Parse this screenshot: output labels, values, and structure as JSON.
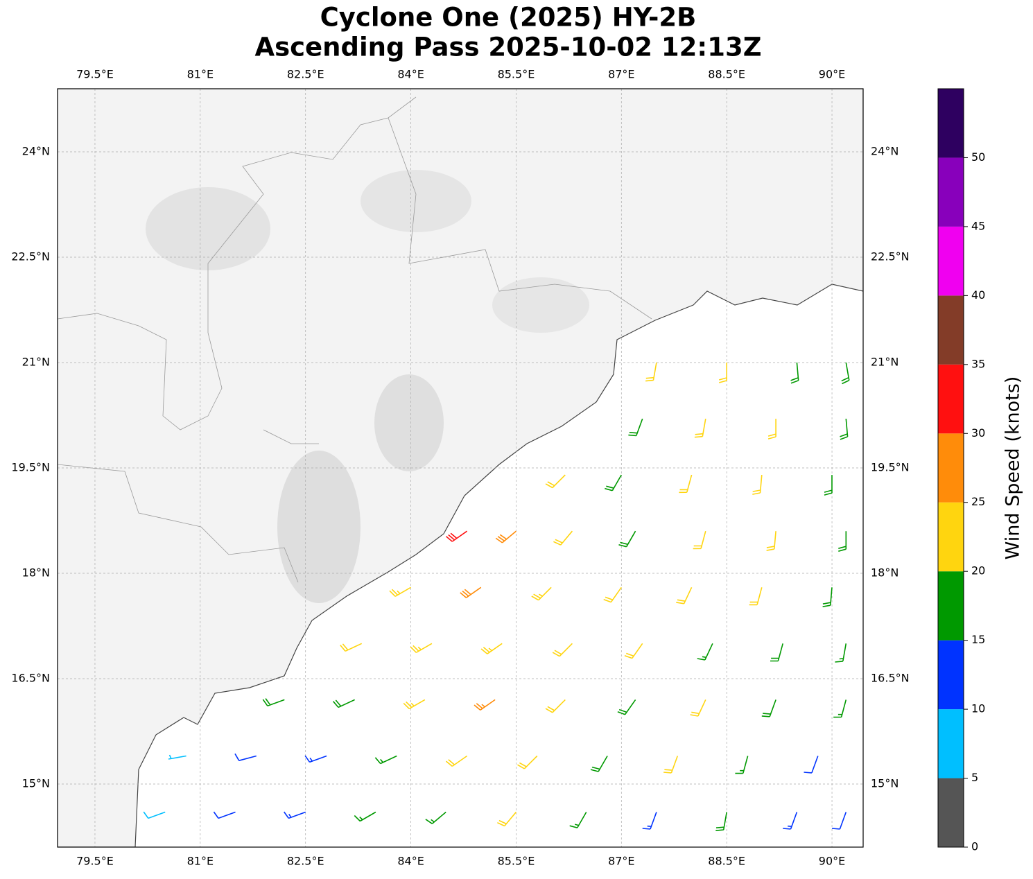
{
  "chart_data": {
    "type": "barbs",
    "title_lines": [
      "Cyclone One (2025) HY-2B",
      "Ascending Pass 2025-10-02 12:13Z"
    ],
    "xlim": [
      78.967,
      90.444
    ],
    "ylim": [
      14.102,
      24.898
    ],
    "xticks": [
      {
        "value": 79.5,
        "label": "79.5°E"
      },
      {
        "value": 81,
        "label": "81°E"
      },
      {
        "value": 82.5,
        "label": "82.5°E"
      },
      {
        "value": 84,
        "label": "84°E"
      },
      {
        "value": 85.5,
        "label": "85.5°E"
      },
      {
        "value": 87,
        "label": "87°E"
      },
      {
        "value": 88.5,
        "label": "88.5°E"
      },
      {
        "value": 90,
        "label": "90°E"
      }
    ],
    "yticks": [
      {
        "value": 15,
        "label": "15°N"
      },
      {
        "value": 16.5,
        "label": "16.5°N"
      },
      {
        "value": 18,
        "label": "18°N"
      },
      {
        "value": 19.5,
        "label": "19.5°N"
      },
      {
        "value": 21,
        "label": "21°N"
      },
      {
        "value": 22.5,
        "label": "22.5°N"
      },
      {
        "value": 24,
        "label": "24°N"
      }
    ],
    "grid": true,
    "colorbar": {
      "label": "Wind Speed (knots)",
      "bounds": [
        0,
        5,
        10,
        15,
        20,
        25,
        30,
        35,
        40,
        45,
        50,
        55
      ],
      "colors": [
        "#555555",
        "#00bfff",
        "#0033ff",
        "#009900",
        "#ffd50f",
        "#ff8c0a",
        "#ff1010",
        "#833c28",
        "#f000f0",
        "#8800bb",
        "#2e0060"
      ],
      "ticks": [
        0,
        5,
        10,
        15,
        20,
        25,
        30,
        35,
        40,
        45,
        50
      ]
    },
    "barbs": {
      "lon": [
        80.5,
        81.5,
        82.5,
        83.5,
        84.5,
        85.5,
        86.5,
        87.5,
        88.5,
        89.5,
        90.2,
        80.8,
        81.8,
        82.8,
        83.8,
        84.8,
        85.8,
        86.8,
        87.8,
        88.8,
        89.8,
        82.2,
        83.2,
        84.2,
        85.2,
        86.2,
        87.2,
        88.2,
        89.2,
        90.2,
        83.3,
        84.3,
        85.3,
        86.3,
        87.3,
        88.3,
        89.3,
        90.2,
        84.0,
        85.0,
        86.0,
        87.0,
        88.0,
        89.0,
        90.0,
        84.8,
        85.5,
        86.3,
        87.2,
        88.2,
        89.2,
        90.2,
        86.2,
        87.0,
        88.0,
        89.0,
        90.0,
        87.3,
        88.2,
        89.2,
        90.2,
        87.5,
        88.5,
        89.5,
        90.2
      ],
      "lat": [
        14.6,
        14.6,
        14.6,
        14.6,
        14.6,
        14.6,
        14.6,
        14.6,
        14.6,
        14.6,
        14.6,
        15.4,
        15.4,
        15.4,
        15.4,
        15.4,
        15.4,
        15.4,
        15.4,
        15.4,
        15.4,
        16.2,
        16.2,
        16.2,
        16.2,
        16.2,
        16.2,
        16.2,
        16.2,
        16.2,
        17.0,
        17.0,
        17.0,
        17.0,
        17.0,
        17.0,
        17.0,
        17.0,
        17.8,
        17.8,
        17.8,
        17.8,
        17.8,
        17.8,
        17.8,
        18.6,
        18.6,
        18.6,
        18.6,
        18.6,
        18.6,
        18.6,
        19.4,
        19.4,
        19.4,
        19.4,
        19.4,
        20.2,
        20.2,
        20.2,
        20.2,
        21.0,
        21.0,
        21.0,
        21.0
      ],
      "speed": [
        8,
        12,
        13,
        16,
        17,
        22,
        17,
        14,
        19,
        13,
        12,
        7,
        12,
        14,
        17,
        22,
        22,
        19,
        20,
        17,
        12,
        18,
        19,
        23,
        26,
        22,
        18,
        22,
        18,
        17,
        22,
        23,
        24,
        22,
        21,
        17,
        18,
        17,
        24,
        29,
        23,
        22,
        22,
        21,
        18,
        32,
        28,
        22,
        18,
        22,
        21,
        18,
        21,
        18,
        22,
        22,
        18,
        18,
        22,
        22,
        18,
        22,
        22,
        18,
        18
      ],
      "direction": [
        250,
        250,
        250,
        240,
        230,
        220,
        210,
        200,
        190,
        200,
        200,
        260,
        255,
        250,
        245,
        235,
        225,
        210,
        200,
        195,
        200,
        250,
        245,
        240,
        235,
        225,
        215,
        205,
        200,
        195,
        245,
        240,
        235,
        225,
        215,
        205,
        195,
        190,
        240,
        235,
        225,
        215,
        205,
        195,
        185,
        235,
        230,
        220,
        210,
        195,
        185,
        180,
        225,
        210,
        195,
        185,
        180,
        200,
        190,
        180,
        175,
        190,
        180,
        175,
        170
      ]
    }
  }
}
